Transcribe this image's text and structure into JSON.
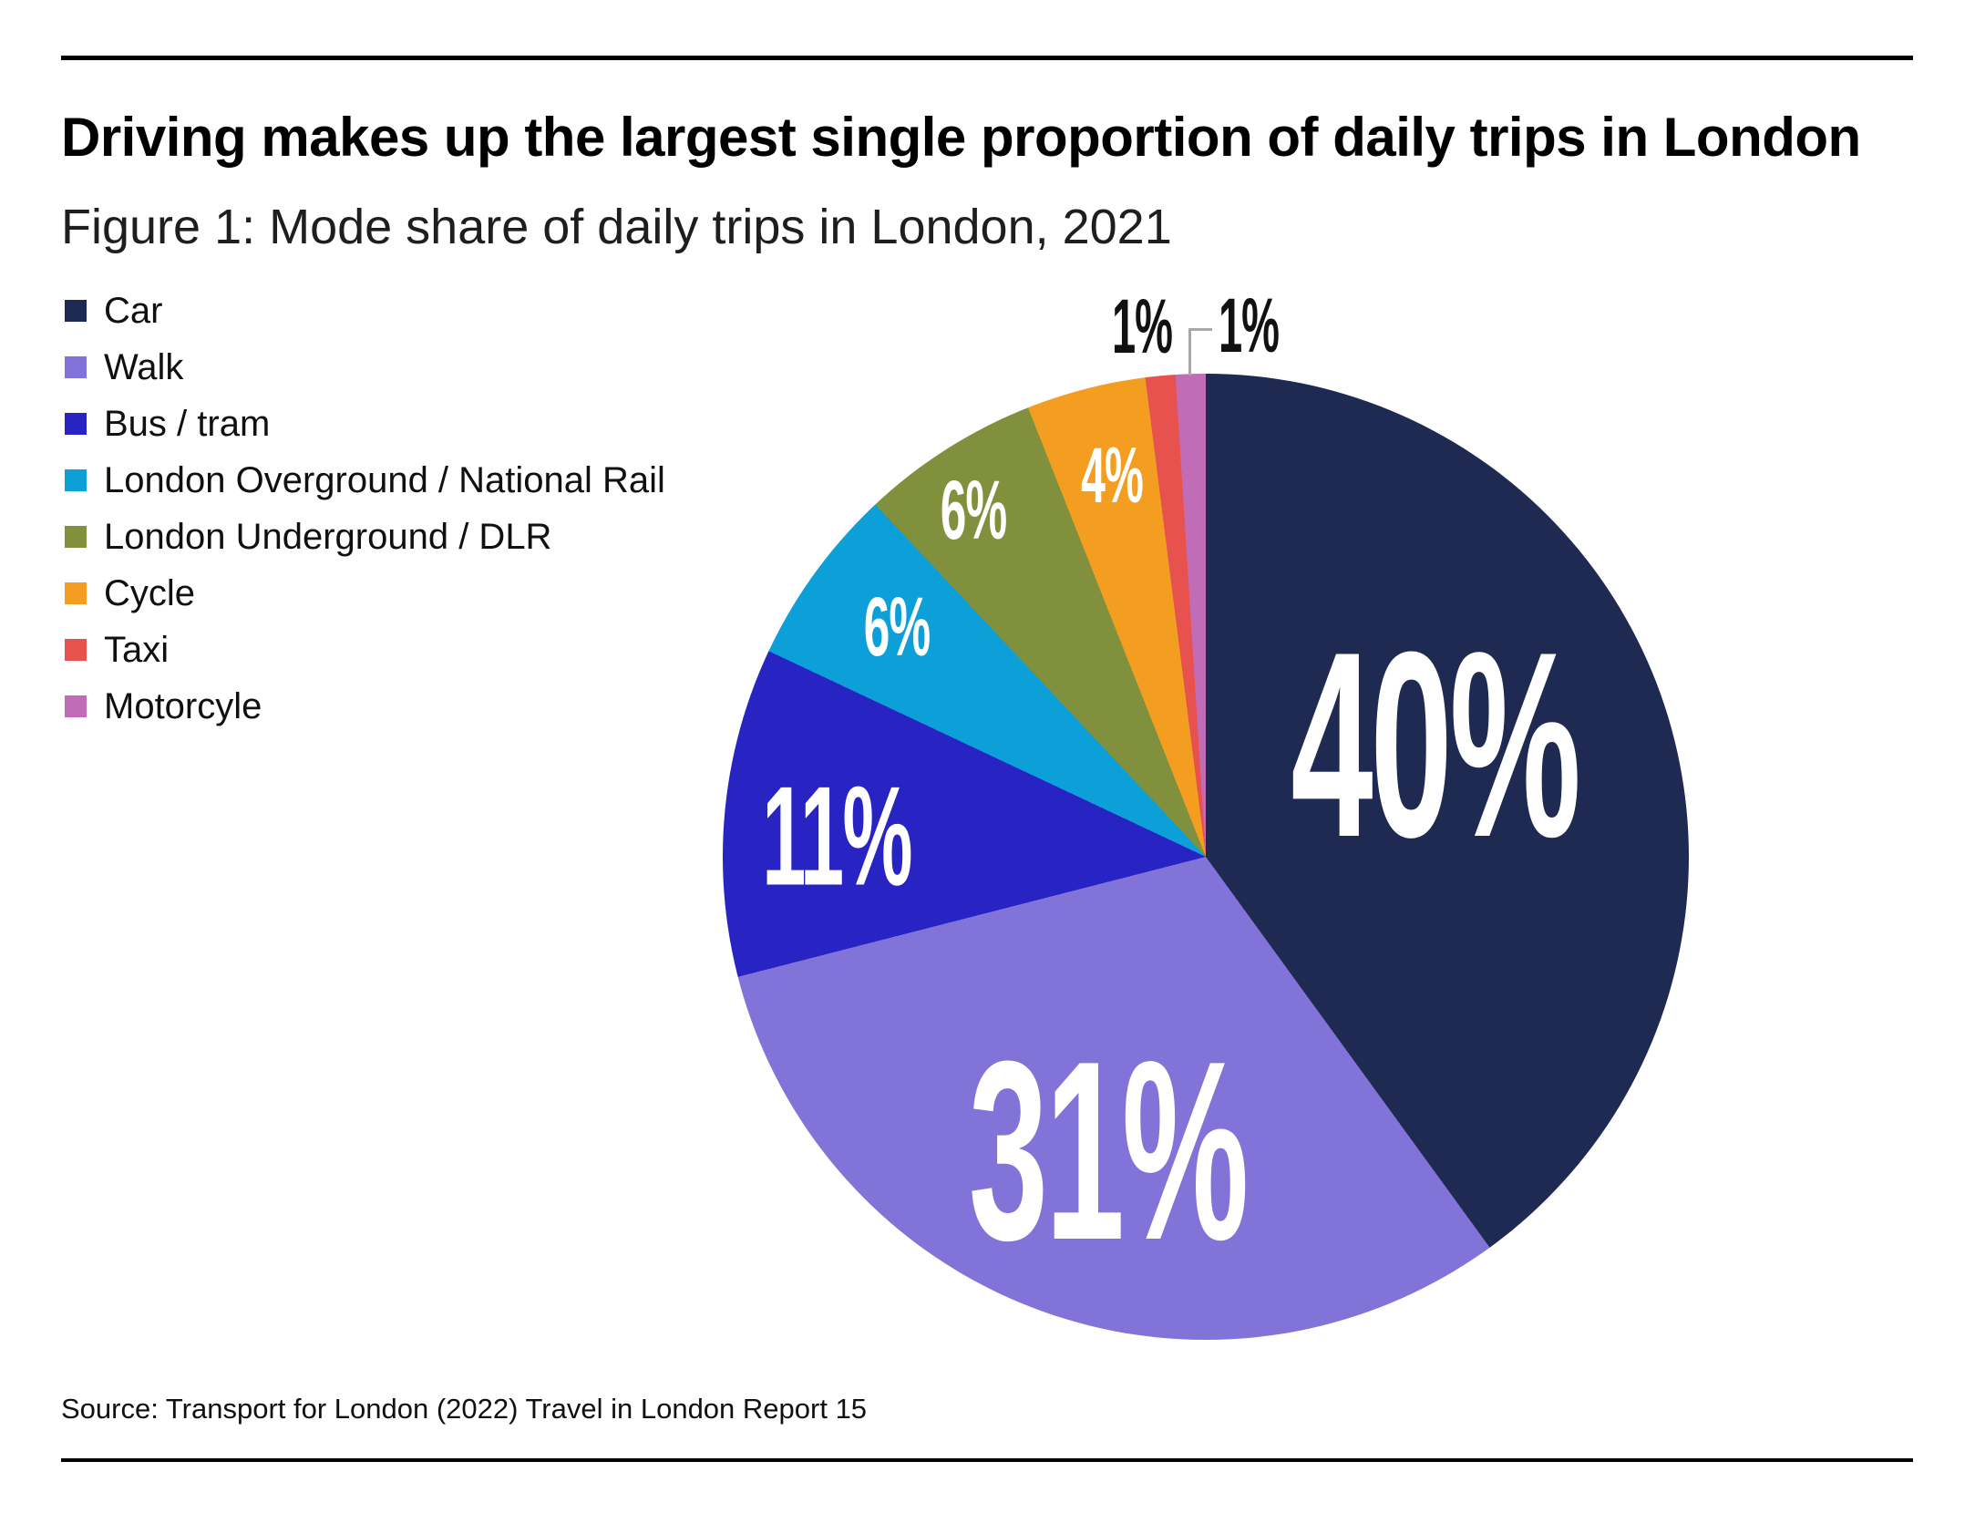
{
  "header": {
    "title": "Driving makes up the largest single proportion of daily trips in London",
    "subtitle": "Figure 1: Mode share of daily trips in London, 2021"
  },
  "source_note": "Source: Transport for London (2022) Travel in London Report 15",
  "chart_data": {
    "type": "pie",
    "title": "Mode share of daily trips in London, 2021",
    "units": "percent of daily trips",
    "direction": "clockwise",
    "start_angle_deg": 0,
    "legend_position": "upper-left",
    "slices": [
      {
        "label": "Car",
        "value": 40,
        "display": "40%",
        "color": "#1e2a52"
      },
      {
        "label": "Walk",
        "value": 31,
        "display": "31%",
        "color": "#8273d8"
      },
      {
        "label": "Bus / tram",
        "value": 11,
        "display": "11%",
        "color": "#2824c4"
      },
      {
        "label": "London Overground / National Rail",
        "value": 6,
        "display": "6%",
        "color": "#0c9fd8"
      },
      {
        "label": "London Underground / DLR",
        "value": 6,
        "display": "6%",
        "color": "#80903c"
      },
      {
        "label": "Cycle",
        "value": 4,
        "display": "4%",
        "color": "#f39e20"
      },
      {
        "label": "Taxi",
        "value": 1,
        "display": "1%",
        "color": "#e8524e"
      },
      {
        "label": "Motorcyle",
        "value": 1,
        "display": "1%",
        "color": "#c06cb7"
      }
    ]
  }
}
